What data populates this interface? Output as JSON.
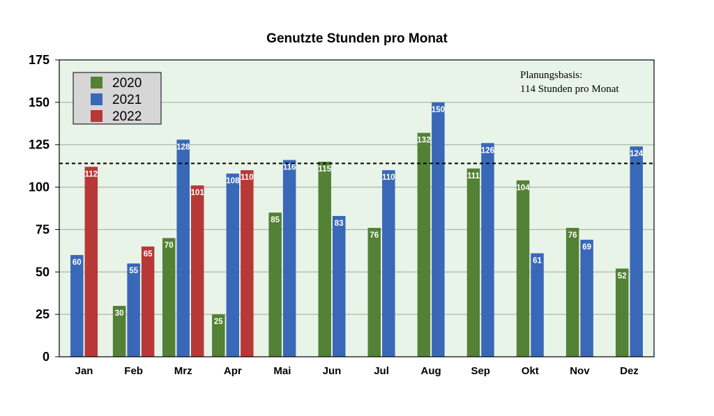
{
  "chart_data": {
    "type": "bar",
    "title": "Genutzte Stunden pro Monat",
    "xlabel": "",
    "ylabel": "",
    "categories": [
      "Jan",
      "Feb",
      "Mrz",
      "Apr",
      "Mai",
      "Jun",
      "Jul",
      "Aug",
      "Sep",
      "Okt",
      "Nov",
      "Dez"
    ],
    "series": [
      {
        "name": "2020",
        "color": "#538135",
        "values": [
          null,
          30,
          70,
          25,
          85,
          115,
          76,
          132,
          111,
          104,
          76,
          52
        ]
      },
      {
        "name": "2021",
        "color": "#3a68b8",
        "values": [
          60,
          55,
          128,
          108,
          116,
          83,
          110,
          150,
          126,
          61,
          69,
          124
        ]
      },
      {
        "name": "2022",
        "color": "#b83838",
        "values": [
          112,
          65,
          101,
          110,
          null,
          null,
          null,
          null,
          null,
          null,
          null,
          null
        ]
      }
    ],
    "ylim": [
      0,
      175
    ],
    "yticks": [
      0,
      25,
      50,
      75,
      100,
      125,
      150,
      175
    ],
    "grid": true,
    "legend_position": "top-left",
    "plot_background": "#e9f4e9",
    "reference_line": {
      "value": 114,
      "style": "dashed"
    },
    "annotation": [
      "Planungsbasis:",
      "114 Stunden pro Monat"
    ]
  }
}
